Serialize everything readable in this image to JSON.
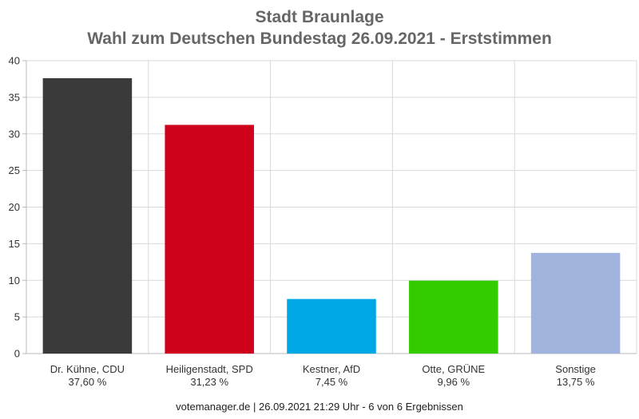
{
  "chart_data": {
    "type": "bar",
    "title": "Stadt Braunlage",
    "subtitle": "Wahl zum Deutschen Bundestag 26.09.2021  - Erststimmen",
    "categories": [
      "Dr. Kühne, CDU",
      "Heiligenstadt, SPD",
      "Kestner, AfD",
      "Otte, GRÜNE",
      "Sonstige"
    ],
    "values": [
      37.6,
      31.23,
      7.45,
      9.96,
      13.75
    ],
    "value_labels": [
      "37,60 %",
      "31,23 %",
      "7,45 %",
      "9,96 %",
      "13,75 %"
    ],
    "colors": [
      "#3a3a3a",
      "#d0021b",
      "#00a8e6",
      "#33cc00",
      "#a0b4de"
    ],
    "ylim": [
      0,
      40
    ],
    "yticks": [
      "0",
      "5",
      "10",
      "15",
      "20",
      "25",
      "30",
      "35",
      "40"
    ],
    "grid": true
  },
  "footer": "votemanager.de | 26.09.2021 21:29 Uhr - 6 von 6 Ergebnissen"
}
